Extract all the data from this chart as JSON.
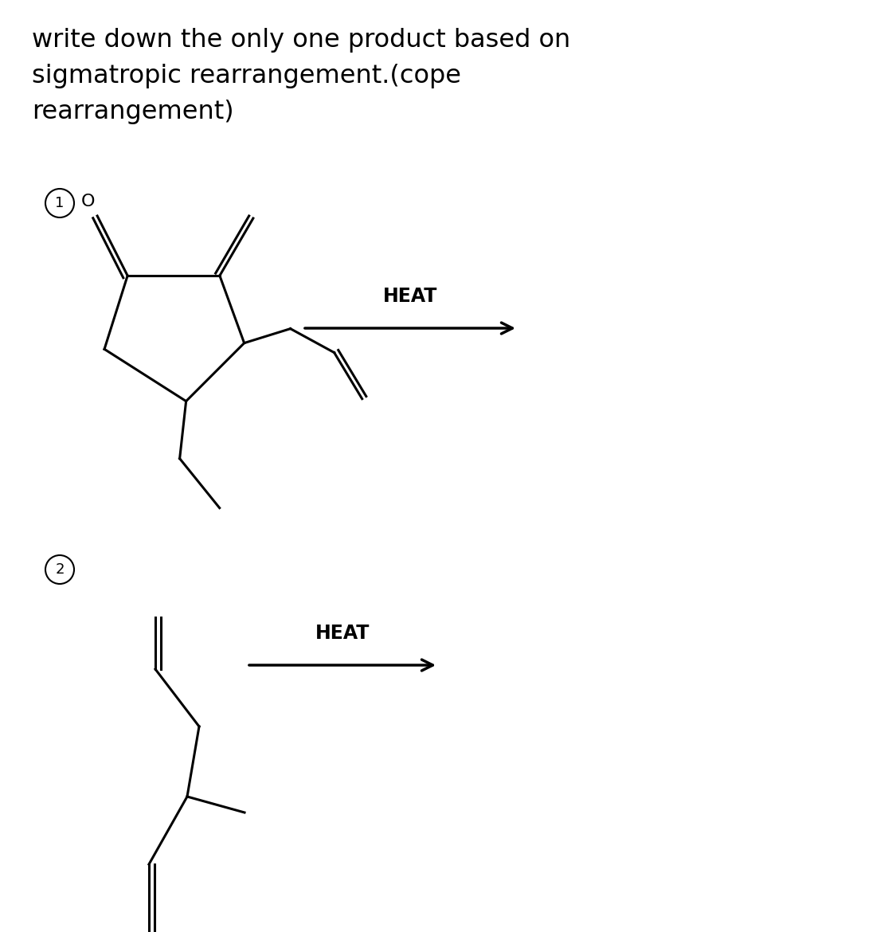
{
  "title_line1": "write down the only one product based on",
  "title_line2": "sigmatropic rearrangement.(cope",
  "title_line3": "rearrangement)",
  "title_fontsize": 23,
  "background_color": "#ffffff",
  "line_color": "#000000",
  "heat_label": "HEAT",
  "heat_fontsize": 17
}
